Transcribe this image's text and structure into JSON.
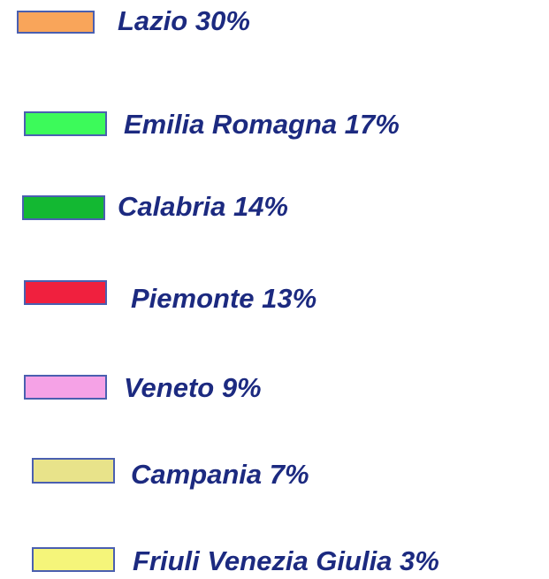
{
  "legend": {
    "items": [
      {
        "label": "Lazio 30%",
        "color": "#f9a55a"
      },
      {
        "label": "Emilia Romagna 17%",
        "color": "#3cfa5a"
      },
      {
        "label": "Calabria 14%",
        "color": "#13b832"
      },
      {
        "label": "Piemonte 13%",
        "color": "#f0203e"
      },
      {
        "label": "Veneto 9%",
        "color": "#f5a2e6"
      },
      {
        "label": "Campania 7%",
        "color": "#e8e38a"
      },
      {
        "label": "Friuli Venezia Giulia 3%",
        "color": "#f5f57a"
      }
    ]
  }
}
